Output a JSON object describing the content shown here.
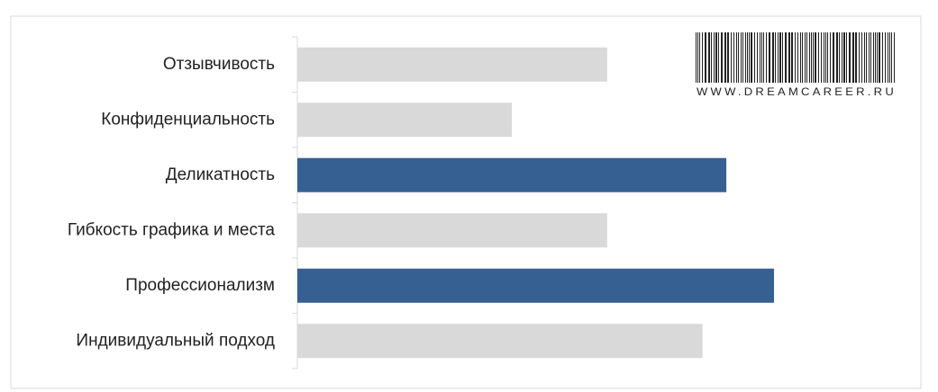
{
  "chart_data": {
    "type": "barh",
    "categories": [
      "Отзывчивость",
      "Конфиденциальность",
      "Деликатность",
      "Гибкость графика и места",
      "Профессионализм",
      "Индивидуальный подход"
    ],
    "values": [
      6.5,
      4.5,
      9,
      6.5,
      10,
      8.5
    ],
    "colors": [
      "#d9d9d9",
      "#d9d9d9",
      "#376092",
      "#d9d9d9",
      "#376092",
      "#d9d9d9"
    ],
    "xlim": [
      0,
      10
    ],
    "watermark": "WWW.DREAMCAREER.RU"
  }
}
